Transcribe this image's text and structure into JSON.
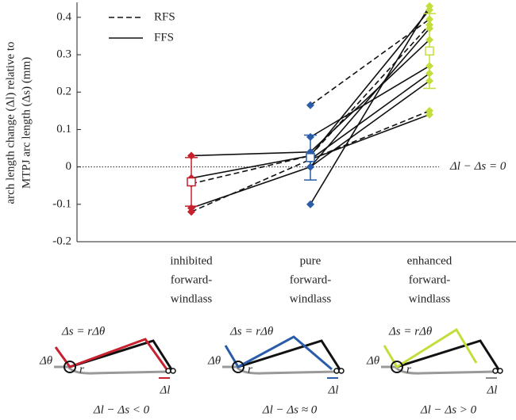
{
  "chart_data": {
    "type": "paired-line",
    "ylabel": [
      "arch length change (Δl) relative to",
      "MTPJ arc length (Δs) (mm)"
    ],
    "categories": [
      [
        "inhibited",
        "forward-",
        "windlass"
      ],
      [
        "pure",
        "forward-",
        "windlass"
      ],
      [
        "enhanced",
        "forward-",
        "windlass"
      ]
    ],
    "category_colors": [
      "#c8202e",
      "#2a5caa",
      "#c5dd3c"
    ],
    "ylim": [
      -0.2,
      0.44
    ],
    "yticks": [
      -0.2,
      -0.1,
      0,
      0.1,
      0.2,
      0.3,
      0.4
    ],
    "reference_label": "Δl − Δs = 0",
    "series": [
      {
        "name": "RFS",
        "dashed": true,
        "subjects": [
          [
            -0.12,
            0.02,
            0.15
          ],
          [
            -0.045,
            0.03,
            0.38
          ],
          [
            null,
            0.165,
            0.395
          ]
        ]
      },
      {
        "name": "FFS",
        "dashed": false,
        "subjects": [
          [
            0.03,
            0.04,
            0.34
          ],
          [
            -0.03,
            0.03,
            0.42
          ],
          [
            -0.11,
            0.0,
            0.37
          ],
          [
            null,
            -0.1,
            0.43
          ],
          [
            null,
            0.08,
            0.27
          ],
          [
            null,
            0.02,
            0.25
          ],
          [
            null,
            0.0,
            0.23
          ],
          [
            null,
            0.02,
            0.14
          ]
        ]
      }
    ],
    "means": {
      "values": [
        -0.04,
        0.025,
        0.31
      ],
      "errors": [
        0.065,
        0.06,
        0.1
      ]
    }
  },
  "diagrams": [
    {
      "equation": "Δs =  rΔθ",
      "angle": "Δθ",
      "radius": "r",
      "length": "Δl",
      "caption": "Δl − Δs < 0",
      "color": "#c8202e"
    },
    {
      "equation": "Δs =  rΔθ",
      "angle": "Δθ",
      "radius": "r",
      "length": "Δl",
      "caption": "Δl − Δs ≈ 0",
      "color": "#2a5caa"
    },
    {
      "equation": "Δs =  rΔθ",
      "angle": "Δθ",
      "radius": "r",
      "length": "Δl",
      "caption": "Δl − Δs > 0",
      "color": "#c5dd3c"
    }
  ]
}
